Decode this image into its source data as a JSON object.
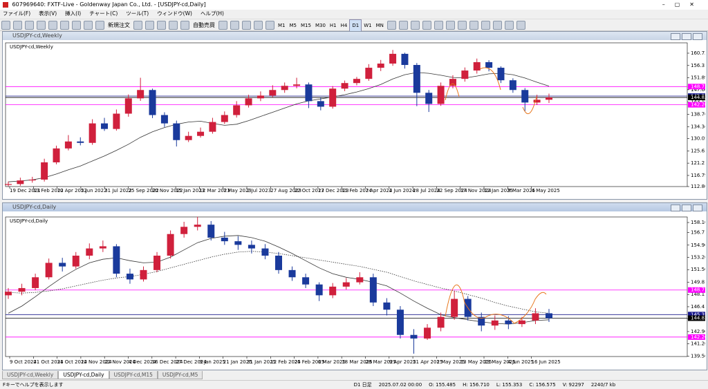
{
  "ui": {
    "window_title": "607969640: FXTF-Live - Goldenway Japan Co., Ltd. - [USDJPY-cd,Daily]",
    "menu": [
      "ファイル(F)",
      "表示(V)",
      "挿入(I)",
      "チャート(C)",
      "ツール(T)",
      "ウィンドウ(W)",
      "ヘルプ(H)"
    ],
    "toolbar": [
      "新規注文",
      "自動売買"
    ],
    "timeframes": [
      "M1",
      "M5",
      "M15",
      "M30",
      "H1",
      "H4",
      "D1",
      "W1",
      "MN"
    ],
    "tabs": [
      "USDJPY-cd,Weekly",
      "USDJPY-cd,Daily",
      "USDJPY-cd,M15",
      "USDJPY-cd,M5"
    ],
    "status": [
      "Fキーでヘルプを表示します",
      "D1 日足",
      "2025.07.02 00:00",
      "O: 155.485",
      "H: 156.710",
      "L: 155.353",
      "C: 156.575",
      "V: 92297",
      "2240/7 kb"
    ]
  },
  "chart_data": [
    {
      "type": "candlestick",
      "title": "USDJPY-cd,Weekly",
      "up_color": "#d0203c",
      "down_color": "#1a3a9c",
      "xlabels": [
        "19 Dec 2021",
        "13 Feb 2022",
        "10 Apr 2022",
        "5 Jun 2022",
        "31 Jul 2022",
        "25 Sep 2022",
        "20 Nov 2022",
        "15 Jan 2023",
        "12 Mar 2023",
        "7 May 2023",
        "2 Jul 2023",
        "27 Aug 2023",
        "22 Oct 2023",
        "17 Dec 2023",
        "11 Feb 2024",
        "7 Apr 2024",
        "2 Jun 2024",
        "28 Jul 2024",
        "22 Sep 2024",
        "17 Nov 2024",
        "12 Jan 2025",
        "9 Mar 2025",
        "4 May 2025"
      ],
      "open": [
        113.4,
        113.7,
        115.0,
        115.3,
        121.5,
        126.5,
        129.0,
        128.5,
        135.5,
        133.5,
        139.0,
        144.5,
        147.5,
        138.5,
        135.5,
        129.5,
        131.0,
        132.5,
        136.0,
        138.5,
        142.0,
        144.5,
        145.5,
        147.5,
        149.0,
        149.5,
        143.5,
        141.5,
        148.0,
        150.0,
        151.5,
        155.5,
        157.0,
        160.5,
        156.5,
        146.5,
        142.5,
        149.0,
        151.5,
        154.5,
        157.5,
        155.5,
        151.0,
        147.5,
        143.0,
        144.0
      ],
      "high": [
        114.6,
        116.0,
        116.3,
        122.8,
        127.5,
        131.3,
        130.5,
        137.0,
        137.5,
        140.5,
        145.9,
        151.9,
        148.0,
        139.5,
        136.5,
        132.5,
        134.0,
        137.5,
        139.8,
        143.5,
        145.8,
        147.0,
        149.2,
        150.2,
        151.9,
        150.2,
        144.8,
        148.9,
        150.9,
        152.2,
        156.8,
        158.3,
        161.9,
        160.9,
        157.2,
        147.5,
        150.2,
        152.8,
        155.6,
        158.8,
        158.2,
        156.0,
        151.7,
        148.2,
        145.8,
        146.2
      ],
      "low": [
        112.9,
        113.1,
        114.2,
        114.6,
        120.8,
        125.8,
        127.6,
        127.8,
        132.8,
        132.9,
        137.9,
        143.6,
        137.4,
        134.2,
        127.2,
        128.8,
        130.4,
        131.8,
        135.3,
        137.6,
        141.2,
        143.5,
        144.9,
        146.5,
        148.1,
        141.0,
        140.2,
        140.8,
        147.1,
        149.2,
        150.8,
        154.3,
        156.2,
        155.2,
        141.7,
        139.6,
        141.8,
        148.1,
        150.5,
        153.4,
        154.2,
        150.0,
        146.5,
        139.9,
        142.1,
        142.8
      ],
      "close": [
        113.7,
        115.0,
        115.3,
        121.5,
        126.5,
        129.0,
        128.5,
        135.5,
        133.5,
        139.0,
        144.5,
        147.5,
        138.5,
        135.5,
        129.5,
        131.0,
        132.5,
        136.0,
        138.5,
        142.0,
        144.5,
        145.5,
        147.5,
        149.0,
        149.5,
        143.5,
        141.5,
        148.0,
        150.0,
        151.5,
        155.5,
        157.0,
        160.5,
        156.5,
        146.5,
        142.5,
        149.0,
        151.5,
        154.5,
        157.5,
        155.5,
        151.0,
        147.5,
        143.0,
        144.0,
        144.82
      ],
      "lines": [
        {
          "color": "#333333",
          "style": "solid",
          "values": [
            114.5,
            114.8,
            115.2,
            116.0,
            117.3,
            118.8,
            120.2,
            122.0,
            123.8,
            125.8,
            128.0,
            130.5,
            132.5,
            134.0,
            135.2,
            136.0,
            136.3,
            135.5,
            134.8,
            135.2,
            136.5,
            138.0,
            139.5,
            141.0,
            142.5,
            143.6,
            144.3,
            145.0,
            145.8,
            146.8,
            148.0,
            149.5,
            151.5,
            153.0,
            153.8,
            153.5,
            152.8,
            152.0,
            151.8,
            152.5,
            153.3,
            153.5,
            153.0,
            151.8,
            150.3,
            148.9
          ]
        }
      ],
      "hlines": [
        {
          "value": 148.731,
          "color": "#ff00ff"
        },
        {
          "value": 145.321,
          "color": "#1a1a8c"
        },
        {
          "value": 144.821,
          "color": "#000000"
        },
        {
          "value": 142.201,
          "color": "#ff00ff"
        }
      ],
      "ylim": [
        112.8,
        164.45
      ],
      "yticks": [
        {
          "value": 160.73,
          "label": "160.730"
        },
        {
          "value": 156.31,
          "label": "156.310"
        },
        {
          "value": 151.89,
          "label": "151.890"
        },
        {
          "value": 147.6,
          "label": "147.600"
        },
        {
          "value": 143.18,
          "label": "143.180"
        },
        {
          "value": 138.76,
          "label": "138.760"
        },
        {
          "value": 134.34,
          "label": "134.340"
        },
        {
          "value": 130.05,
          "label": "130.050"
        },
        {
          "value": 125.63,
          "label": "125.630"
        },
        {
          "value": 121.21,
          "label": "121.210"
        },
        {
          "value": 116.79,
          "label": "116.790"
        },
        {
          "value": 112.8,
          "label": "112.800"
        }
      ]
    },
    {
      "type": "candlestick",
      "title": "USDJPY-cd,Daily",
      "up_color": "#d0203c",
      "down_color": "#1a3a9c",
      "xlabels": [
        "9 Oct 2024",
        "21 Oct 2024",
        "31 Oct 2024",
        "12 Nov 2024",
        "22 Nov 2024",
        "4 Dec 2024",
        "16 Dec 2024",
        "27 Dec 2024",
        "9 Jan 2025",
        "21 Jan 2025",
        "31 Jan 2025",
        "12 Feb 2025",
        "24 Feb 2025",
        "6 Mar 2025",
        "18 Mar 2025",
        "28 Mar 2025",
        "9 Apr 2025",
        "21 Apr 2025",
        "1 May 2025",
        "13 May 2025",
        "23 May 2025",
        "4 Jun 2025",
        "16 Jun 2025"
      ],
      "open": [
        148.0,
        148.5,
        149.0,
        150.5,
        152.5,
        152.0,
        153.5,
        154.5,
        154.8,
        151.0,
        150.2,
        151.5,
        153.5,
        156.5,
        157.5,
        157.8,
        156.0,
        155.5,
        155.0,
        154.5,
        153.5,
        151.5,
        150.5,
        149.5,
        148.0,
        149.2,
        149.8,
        150.5,
        147.0,
        146.0,
        142.5,
        142.0,
        143.5,
        145.0,
        147.5,
        145.0,
        143.8,
        144.5,
        144.0,
        144.5,
        145.5
      ],
      "high": [
        149.0,
        149.6,
        151.0,
        153.1,
        153.2,
        154.0,
        155.2,
        155.6,
        155.1,
        151.7,
        152.0,
        154.0,
        157.0,
        158.2,
        158.9,
        158.3,
        156.8,
        156.2,
        155.6,
        155.1,
        154.0,
        152.0,
        151.0,
        149.8,
        149.7,
        150.4,
        151.2,
        151.0,
        147.6,
        146.5,
        143.3,
        144.0,
        145.6,
        148.6,
        147.9,
        145.6,
        145.2,
        145.1,
        145.0,
        146.2,
        146.1
      ],
      "low": [
        147.5,
        148.0,
        148.7,
        150.2,
        151.3,
        151.7,
        153.0,
        154.0,
        150.5,
        149.6,
        149.9,
        151.2,
        153.1,
        156.0,
        157.0,
        155.6,
        155.0,
        154.3,
        153.8,
        153.0,
        151.0,
        150.0,
        149.0,
        147.2,
        147.6,
        148.8,
        149.5,
        146.5,
        145.2,
        142.0,
        139.9,
        141.8,
        143.0,
        144.6,
        144.5,
        143.0,
        143.2,
        143.3,
        143.6,
        144.0,
        144.3
      ],
      "close": [
        148.5,
        149.0,
        150.5,
        152.5,
        152.0,
        153.5,
        154.5,
        154.8,
        151.0,
        150.2,
        151.5,
        153.5,
        156.5,
        157.5,
        157.8,
        156.0,
        155.5,
        155.0,
        154.5,
        153.5,
        151.5,
        150.5,
        149.5,
        148.0,
        149.2,
        149.8,
        150.5,
        147.0,
        146.0,
        142.5,
        142.0,
        143.5,
        145.0,
        147.5,
        145.0,
        143.8,
        144.5,
        144.0,
        144.5,
        145.5,
        144.82
      ],
      "lines": [
        {
          "color": "#333333",
          "style": "solid",
          "values": [
            145.5,
            146.5,
            147.8,
            149.2,
            150.5,
            151.6,
            152.5,
            153.0,
            153.2,
            152.8,
            152.5,
            152.6,
            153.3,
            154.3,
            155.3,
            155.9,
            156.2,
            156.3,
            156.0,
            155.5,
            154.7,
            153.8,
            152.8,
            151.8,
            151.0,
            150.5,
            150.2,
            149.8,
            149.3,
            148.3,
            147.2,
            146.2,
            145.3,
            144.9,
            144.6,
            144.3,
            144.1,
            144.0,
            144.2,
            144.5,
            144.6
          ]
        },
        {
          "color": "#333333",
          "style": "dotted",
          "values": [
            148.4,
            148.3,
            148.4,
            148.6,
            148.9,
            149.3,
            149.7,
            150.1,
            150.4,
            150.6,
            150.9,
            151.3,
            151.8,
            152.3,
            152.8,
            153.3,
            153.7,
            154.0,
            154.1,
            154.0,
            153.8,
            153.5,
            153.2,
            152.9,
            152.6,
            152.3,
            152.0,
            151.6,
            151.2,
            150.6,
            150.0,
            149.5,
            149.0,
            148.6,
            148.1,
            147.6,
            147.0,
            146.5,
            146.1,
            145.7,
            145.5
          ]
        }
      ],
      "hlines": [
        {
          "value": 148.731,
          "color": "#ff00ff"
        },
        {
          "value": 145.321,
          "color": "#1a1a8c"
        },
        {
          "value": 144.821,
          "color": "#000000"
        },
        {
          "value": 142.201,
          "color": "#ff00ff"
        }
      ],
      "ylim": [
        139.5,
        158.87
      ],
      "yticks": [
        {
          "value": 158.1,
          "label": "158.100"
        },
        {
          "value": 156.71,
          "label": "156.710"
        },
        {
          "value": 154.96,
          "label": "154.960"
        },
        {
          "value": 153.26,
          "label": "153.260"
        },
        {
          "value": 151.56,
          "label": "151.560"
        },
        {
          "value": 149.81,
          "label": "149.810"
        },
        {
          "value": 148.11,
          "label": "148.110"
        },
        {
          "value": 146.41,
          "label": "146.410"
        },
        {
          "value": 144.71,
          "label": "144.710"
        },
        {
          "value": 142.96,
          "label": "142.960"
        },
        {
          "value": 141.26,
          "label": "141.260"
        },
        {
          "value": 139.56,
          "label": "139.560"
        }
      ]
    }
  ]
}
